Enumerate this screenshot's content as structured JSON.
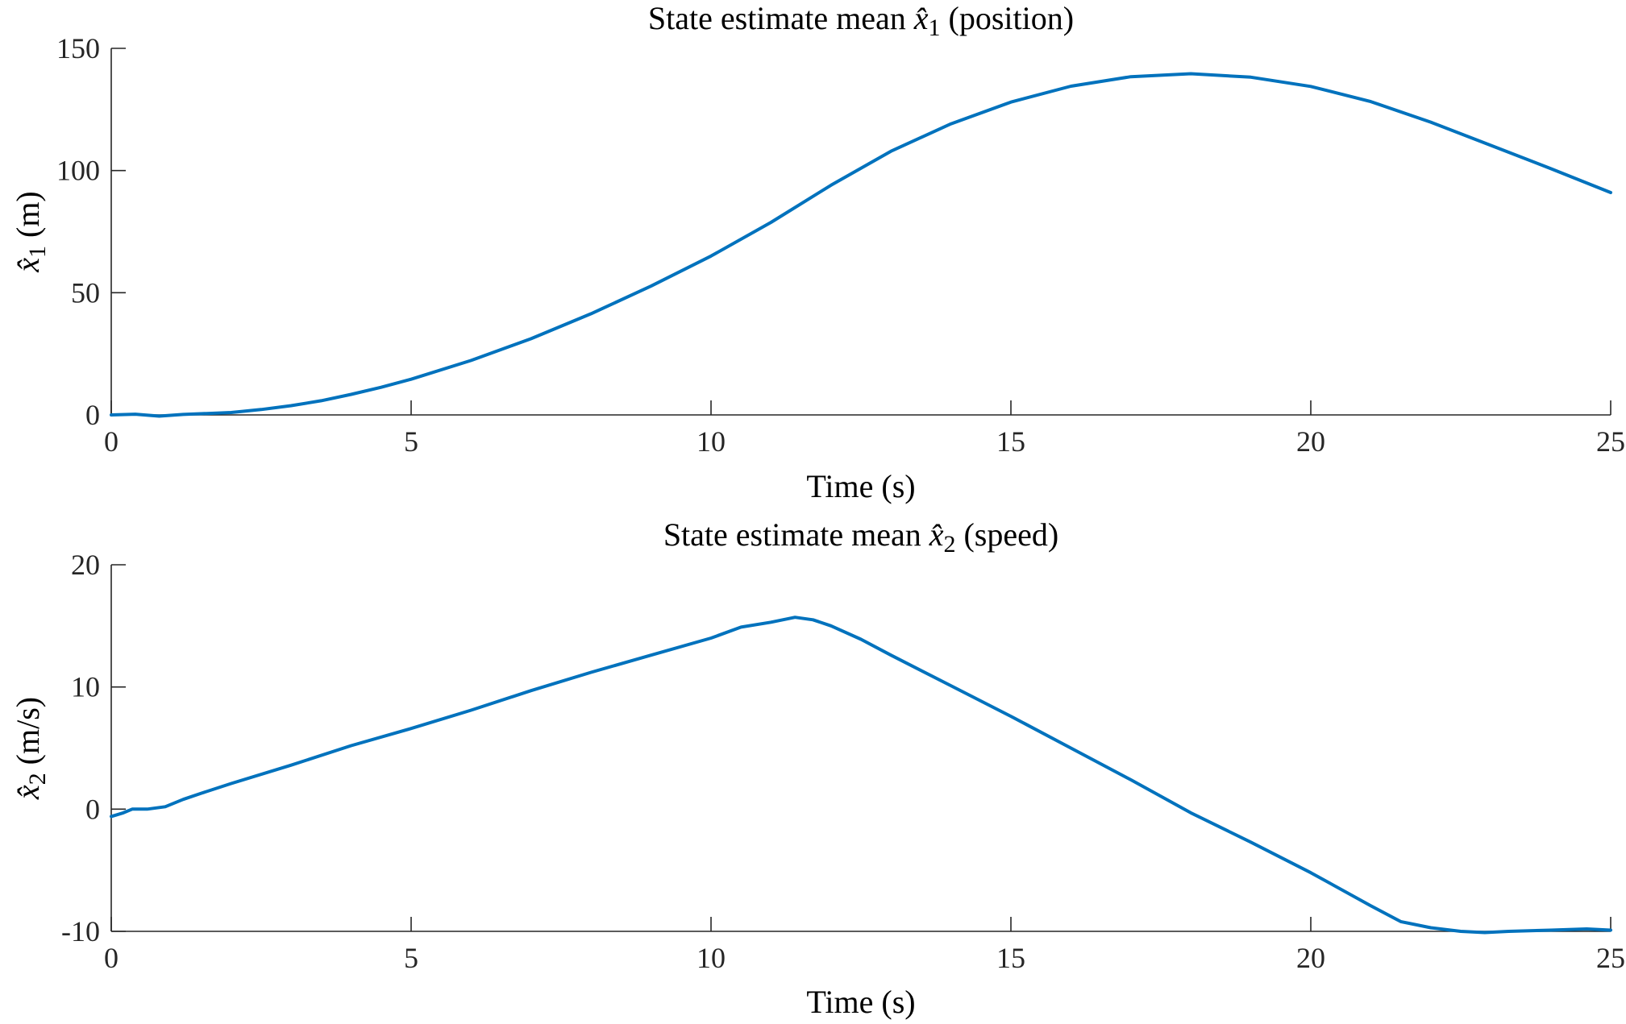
{
  "chart_data": [
    {
      "type": "line",
      "title": {
        "prefix": "State estimate mean ",
        "var": "x̂",
        "sub": "1",
        "suffix": " (position)"
      },
      "xlabel": "Time (s)",
      "ylabel": {
        "var": "x̂",
        "sub": "1",
        "suffix": " (m)"
      },
      "xlim": [
        0,
        25
      ],
      "ylim": [
        0,
        150
      ],
      "xticks": [
        0,
        5,
        10,
        15,
        20,
        25
      ],
      "yticks": [
        0,
        50,
        100,
        150
      ],
      "xtick_labels": [
        "0",
        "5",
        "10",
        "15",
        "20",
        "25"
      ],
      "ytick_labels": [
        "0",
        "50",
        "100",
        "150"
      ],
      "grid": false,
      "color": "#0072BD",
      "series": [
        {
          "x": [
            0,
            0.4,
            0.8,
            1.2,
            1.6,
            2,
            2.5,
            3,
            3.5,
            4,
            4.5,
            5,
            6,
            7,
            8,
            9,
            10,
            11,
            12,
            13,
            14,
            15,
            16,
            17,
            18,
            19,
            20,
            21,
            22,
            23,
            24,
            25
          ],
          "y": [
            0,
            0.3,
            -0.5,
            0.2,
            0.6,
            1,
            2.2,
            3.8,
            5.8,
            8.4,
            11.3,
            14.6,
            22.3,
            31.2,
            41.4,
            52.7,
            65,
            78.8,
            94,
            107.9,
            119.1,
            128,
            134.5,
            138.4,
            139.6,
            138.2,
            134.4,
            128.2,
            119.8,
            110.3,
            100.8,
            91
          ]
        }
      ]
    },
    {
      "type": "line",
      "title": {
        "prefix": "State estimate mean ",
        "var": "x̂",
        "sub": "2",
        "suffix": " (speed)"
      },
      "xlabel": "Time (s)",
      "ylabel": {
        "var": "x̂",
        "sub": "2",
        "suffix": " (m/s)"
      },
      "xlim": [
        0,
        25
      ],
      "ylim": [
        -10,
        20
      ],
      "xticks": [
        0,
        5,
        10,
        15,
        20,
        25
      ],
      "yticks": [
        -10,
        0,
        10,
        20
      ],
      "xtick_labels": [
        "0",
        "5",
        "10",
        "15",
        "20",
        "25"
      ],
      "ytick_labels": [
        "-10",
        "0",
        "10",
        "20"
      ],
      "grid": false,
      "color": "#0072BD",
      "series": [
        {
          "x": [
            0,
            0.2,
            0.35,
            0.6,
            0.9,
            1.2,
            1.5,
            2,
            3,
            4,
            5,
            6,
            7,
            8,
            9,
            10,
            10.5,
            11,
            11.4,
            11.7,
            12,
            12.5,
            13,
            14,
            15,
            16,
            17,
            18,
            19,
            20,
            21,
            21.5,
            22,
            22.5,
            22.9,
            23.3,
            24,
            24.6,
            25
          ],
          "y": [
            -0.6,
            -0.3,
            0,
            0,
            0.2,
            0.8,
            1.3,
            2.1,
            3.6,
            5.2,
            6.6,
            8.1,
            9.7,
            11.2,
            12.6,
            14,
            14.9,
            15.3,
            15.7,
            15.5,
            15,
            13.9,
            12.6,
            10.1,
            7.6,
            5,
            2.4,
            -0.3,
            -2.7,
            -5.2,
            -7.9,
            -9.2,
            -9.7,
            -10,
            -10.1,
            -10,
            -9.9,
            -9.8,
            -9.9
          ]
        }
      ]
    }
  ]
}
